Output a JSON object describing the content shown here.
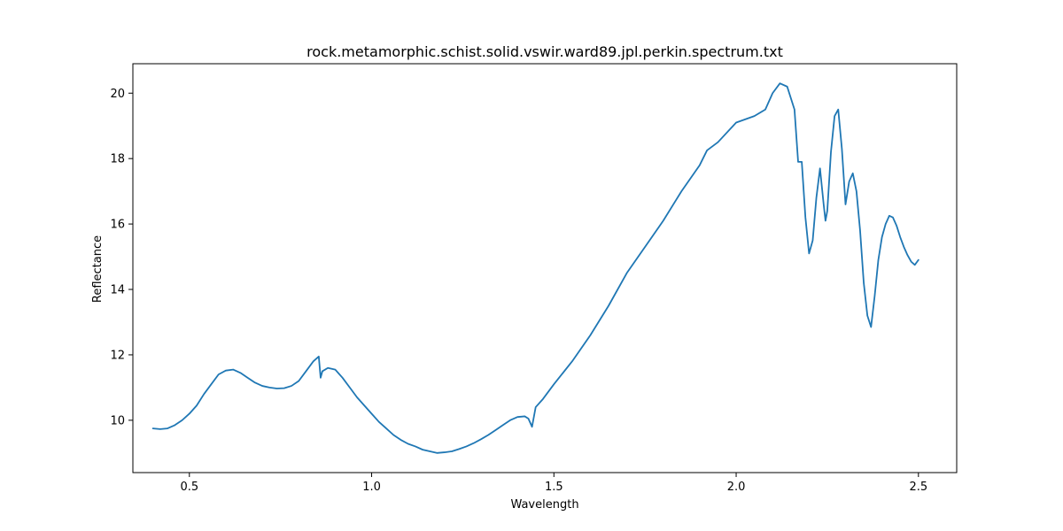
{
  "chart_data": {
    "type": "line",
    "title": "rock.metamorphic.schist.solid.vswir.ward89.jpl.perkin.spectrum.txt",
    "xlabel": "Wavelength",
    "ylabel": "Reflectance",
    "xlim": [
      0.345,
      2.605
    ],
    "ylim": [
      8.4,
      20.9
    ],
    "xticks": [
      0.5,
      1.0,
      1.5,
      2.0,
      2.5
    ],
    "xtick_labels": [
      "0.5",
      "1.0",
      "1.5",
      "2.0",
      "2.5"
    ],
    "yticks": [
      10,
      12,
      14,
      16,
      18,
      20
    ],
    "ytick_labels": [
      "10",
      "12",
      "14",
      "16",
      "18",
      "20"
    ],
    "grid": false,
    "series": [
      {
        "color": "#1f77b4",
        "x": [
          0.4,
          0.42,
          0.44,
          0.46,
          0.48,
          0.5,
          0.52,
          0.54,
          0.56,
          0.58,
          0.6,
          0.62,
          0.64,
          0.66,
          0.68,
          0.7,
          0.72,
          0.74,
          0.76,
          0.78,
          0.8,
          0.82,
          0.84,
          0.855,
          0.86,
          0.865,
          0.88,
          0.9,
          0.92,
          0.94,
          0.96,
          0.98,
          1.0,
          1.02,
          1.04,
          1.06,
          1.08,
          1.1,
          1.12,
          1.14,
          1.16,
          1.18,
          1.2,
          1.22,
          1.24,
          1.26,
          1.28,
          1.3,
          1.32,
          1.34,
          1.36,
          1.38,
          1.4,
          1.42,
          1.43,
          1.44,
          1.45,
          1.47,
          1.5,
          1.55,
          1.6,
          1.65,
          1.7,
          1.75,
          1.8,
          1.85,
          1.9,
          1.92,
          1.95,
          2.0,
          2.05,
          2.08,
          2.1,
          2.12,
          2.14,
          2.16,
          2.17,
          2.18,
          2.19,
          2.2,
          2.21,
          2.22,
          2.23,
          2.24,
          2.245,
          2.25,
          2.26,
          2.27,
          2.28,
          2.29,
          2.3,
          2.31,
          2.32,
          2.33,
          2.34,
          2.35,
          2.36,
          2.37,
          2.38,
          2.39,
          2.4,
          2.41,
          2.42,
          2.43,
          2.44,
          2.45,
          2.46,
          2.47,
          2.48,
          2.49,
          2.5
        ],
        "y": [
          9.75,
          9.73,
          9.75,
          9.85,
          10.0,
          10.2,
          10.45,
          10.8,
          11.1,
          11.4,
          11.52,
          11.55,
          11.45,
          11.3,
          11.15,
          11.05,
          11.0,
          10.97,
          10.98,
          11.05,
          11.2,
          11.5,
          11.8,
          11.95,
          11.3,
          11.5,
          11.6,
          11.55,
          11.3,
          11.0,
          10.7,
          10.45,
          10.2,
          9.95,
          9.75,
          9.55,
          9.4,
          9.28,
          9.2,
          9.1,
          9.05,
          9.0,
          9.02,
          9.05,
          9.12,
          9.2,
          9.3,
          9.42,
          9.55,
          9.7,
          9.85,
          10.0,
          10.1,
          10.12,
          10.05,
          9.8,
          10.4,
          10.65,
          11.1,
          11.8,
          12.6,
          13.5,
          14.5,
          15.3,
          16.1,
          17.0,
          17.8,
          18.25,
          18.5,
          19.1,
          19.3,
          19.5,
          20.0,
          20.3,
          20.2,
          19.5,
          17.9,
          17.9,
          16.2,
          15.1,
          15.5,
          16.8,
          17.7,
          16.6,
          16.1,
          16.4,
          18.2,
          19.3,
          19.5,
          18.3,
          16.6,
          17.3,
          17.55,
          17.0,
          15.8,
          14.2,
          13.2,
          12.85,
          13.8,
          14.9,
          15.6,
          16.0,
          16.25,
          16.2,
          15.95,
          15.6,
          15.3,
          15.05,
          14.85,
          14.75,
          14.9
        ]
      }
    ]
  }
}
